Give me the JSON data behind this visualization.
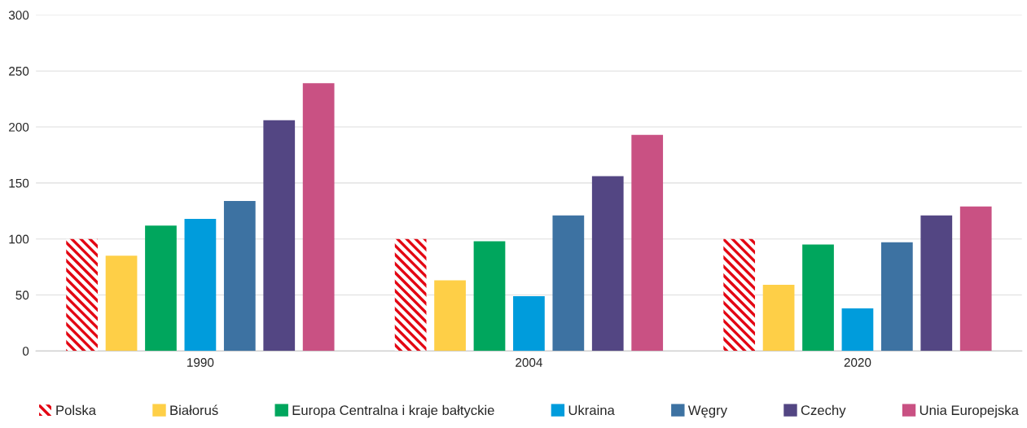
{
  "chart_data": {
    "type": "bar",
    "categories": [
      "1990",
      "2004",
      "2020"
    ],
    "series": [
      {
        "name": "Polska",
        "color": "#e30613",
        "values": [
          100,
          100,
          100
        ]
      },
      {
        "name": "Białoruś",
        "color": "#fecf47",
        "values": [
          85,
          63,
          59
        ]
      },
      {
        "name": "Europa Centralna i kraje bałtyckie",
        "color": "#00a65d",
        "values": [
          112,
          98,
          95
        ]
      },
      {
        "name": "Ukraina",
        "color": "#009cdc",
        "values": [
          118,
          49,
          38
        ]
      },
      {
        "name": "Węgry",
        "color": "#3d72a2",
        "values": [
          134,
          121,
          97
        ]
      },
      {
        "name": "Czechy",
        "color": "#534683",
        "values": [
          206,
          156,
          121
        ]
      },
      {
        "name": "Unia Europejska",
        "color": "#c95183",
        "values": [
          239,
          193,
          129
        ]
      }
    ],
    "ylim": [
      0,
      300
    ],
    "yticks": [
      0,
      50,
      100,
      150,
      200,
      250,
      300
    ],
    "grid": "y",
    "legend": "bottom"
  }
}
